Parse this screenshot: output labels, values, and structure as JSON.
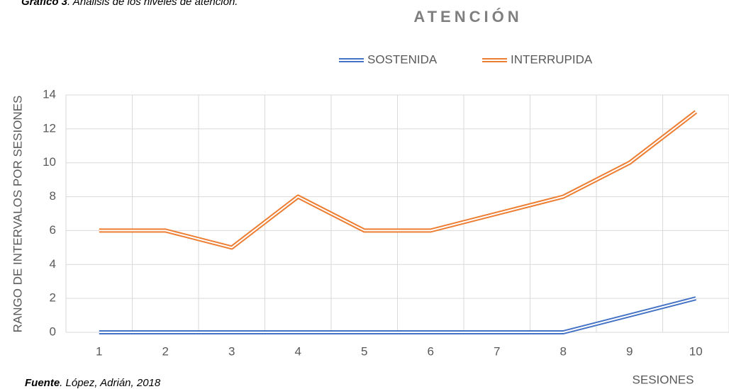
{
  "caption_label": "Gráfico 3",
  "caption_text": ". Análisis de los niveles de atención.",
  "source_label": "Fuente",
  "source_text": ". López, Adrián, 2018",
  "chart_data": {
    "type": "line",
    "title": "ATENCIÓN",
    "y_label": "RANGO DE INTERVALOS POR SESIONES",
    "x_label": "SESIONES",
    "categories": [
      "1",
      "2",
      "3",
      "4",
      "5",
      "6",
      "7",
      "8",
      "9",
      "10"
    ],
    "series": [
      {
        "name": "SOSTENIDA",
        "color": "#4472c4",
        "values": [
          0,
          0,
          0,
          0,
          0,
          0,
          0,
          0,
          1,
          2
        ]
      },
      {
        "name": "INTERRUPIDA",
        "color": "#ed7d31",
        "values": [
          6,
          6,
          5,
          8,
          6,
          6,
          7,
          8,
          10,
          13
        ]
      }
    ],
    "ylim": [
      0,
      14
    ],
    "yticks": [
      0,
      2,
      4,
      6,
      8,
      10,
      12,
      14
    ],
    "grid": true
  }
}
